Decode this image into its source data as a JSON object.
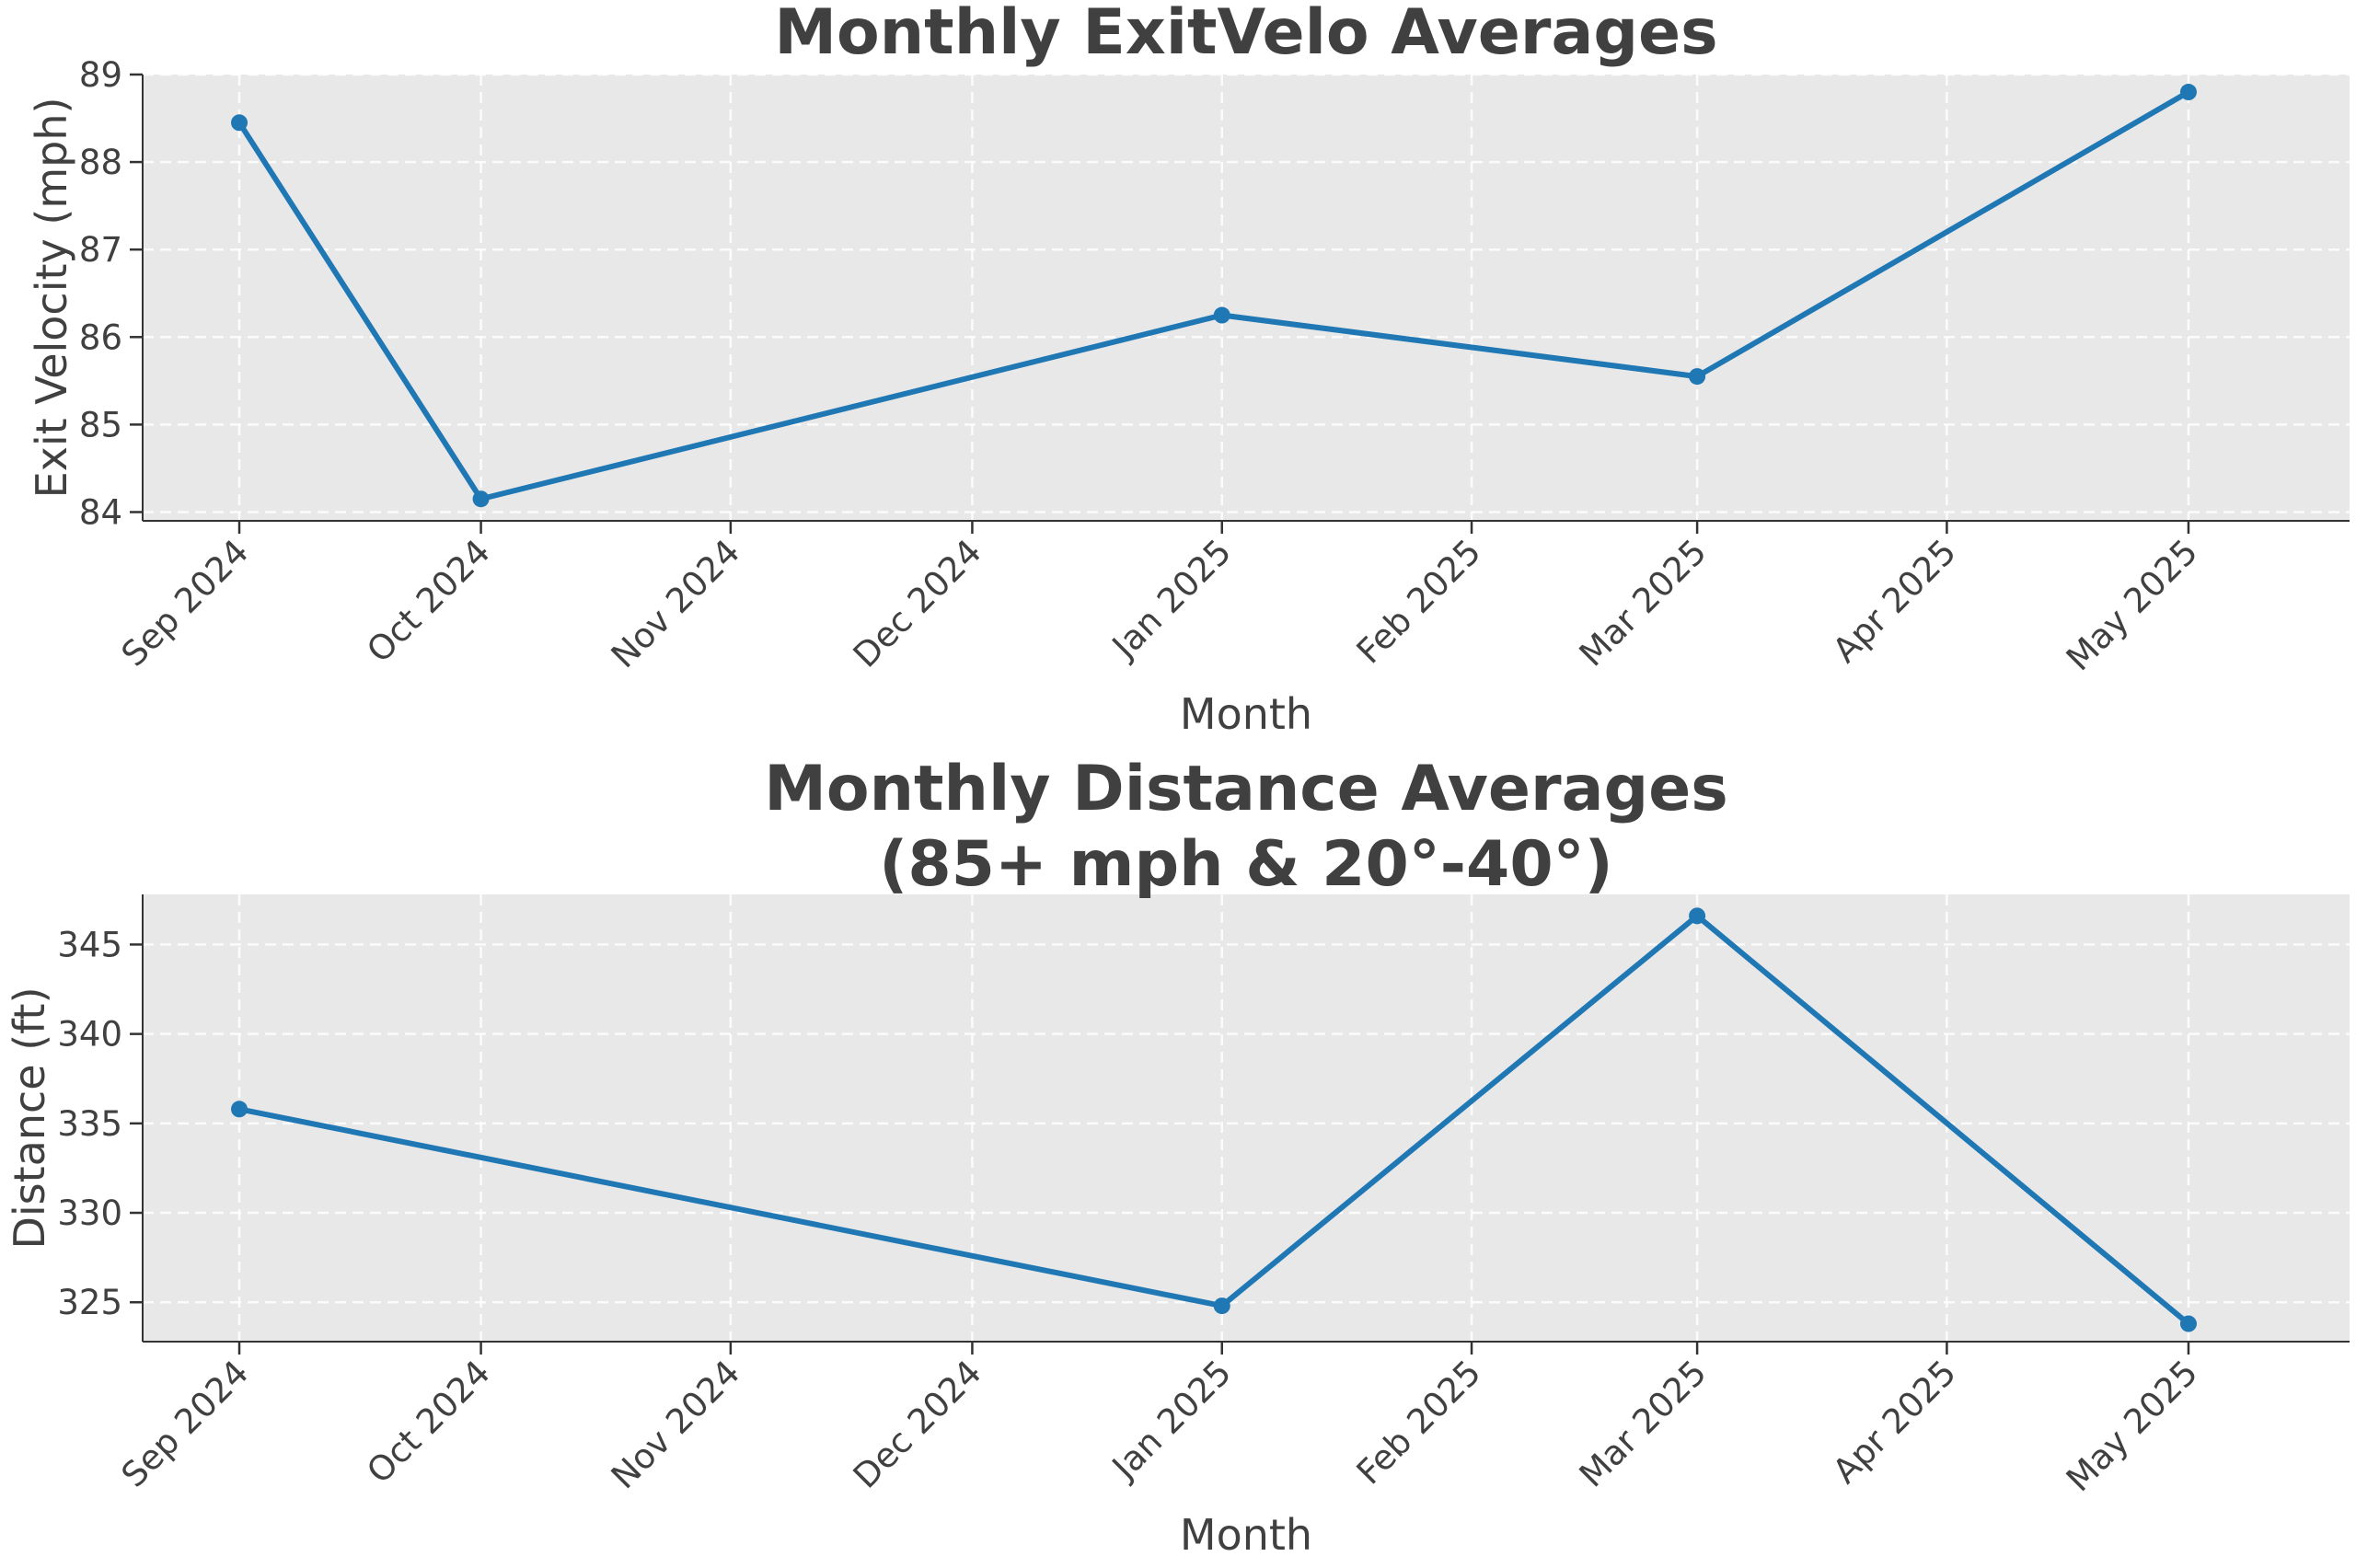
{
  "chart_data": [
    {
      "type": "line",
      "title": "Monthly ExitVelo Averages",
      "xlabel": "Month",
      "ylabel": "Exit Velocity (mph)",
      "x_ticks": [
        "Sep 2024",
        "Oct 2024",
        "Nov 2024",
        "Dec 2024",
        "Jan 2025",
        "Feb 2025",
        "Mar 2025",
        "Apr 2025",
        "May 2025"
      ],
      "x_range": [
        "2024-08-20",
        "2025-05-21"
      ],
      "ylim": [
        83.9,
        89.0
      ],
      "y_ticks": [
        84,
        85,
        86,
        87,
        88,
        89
      ],
      "grid": true,
      "color": "#1f77b4",
      "background": "#e8e8e8",
      "series": [
        {
          "x": [
            "2024-09-01",
            "2024-10-01",
            "2025-01-01",
            "2025-03-01",
            "2025-05-01"
          ],
          "values": [
            88.45,
            84.15,
            86.25,
            85.55,
            88.8
          ]
        }
      ]
    },
    {
      "type": "line",
      "title": "Monthly Distance Averages\n(85+ mph & 20°-40°)",
      "xlabel": "Month",
      "ylabel": "Distance (ft)",
      "x_ticks": [
        "Sep 2024",
        "Oct 2024",
        "Nov 2024",
        "Dec 2024",
        "Jan 2025",
        "Feb 2025",
        "Mar 2025",
        "Apr 2025",
        "May 2025"
      ],
      "x_range": [
        "2024-08-20",
        "2025-05-21"
      ],
      "ylim": [
        322.8,
        347.8
      ],
      "y_ticks": [
        325,
        330,
        335,
        340,
        345
      ],
      "grid": true,
      "color": "#1f77b4",
      "background": "#e8e8e8",
      "series": [
        {
          "x": [
            "2024-09-01",
            "2025-01-01",
            "2025-03-01",
            "2025-05-01"
          ],
          "values": [
            335.8,
            324.8,
            346.6,
            323.8
          ]
        }
      ]
    }
  ]
}
